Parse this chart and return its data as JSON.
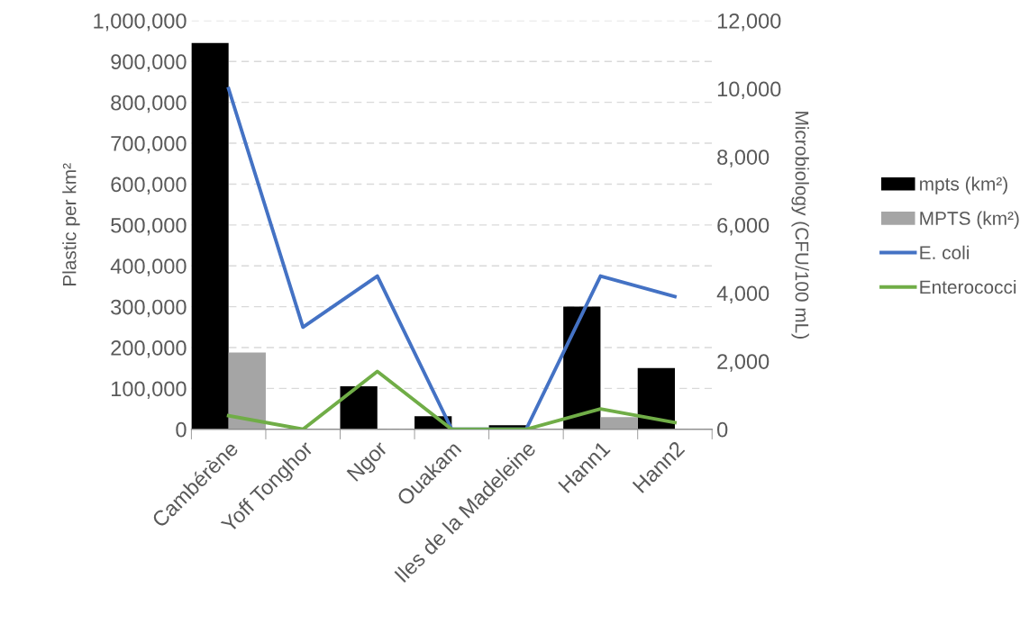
{
  "chart_data": {
    "type": "bar",
    "ylabel": "Plastic per km²",
    "y2label": "Microbiology (CFU/100 mL)",
    "categories": [
      "Cambérène",
      "Yoff Tonghor",
      "Ngor",
      "Ouakam",
      "Iles de la Madeleine",
      "Hann1",
      "Hann2"
    ],
    "series": [
      {
        "name": "mpts (km²)",
        "color": "#000000",
        "values": [
          945000,
          0,
          105000,
          32000,
          10000,
          300000,
          150000
        ]
      },
      {
        "name": "MPTS (km²)",
        "color": "#a5a5a5",
        "values": [
          188000,
          0,
          1000,
          1000,
          0,
          30000,
          0
        ]
      },
      {
        "name": "E. coli",
        "type": "line",
        "axis": "y2",
        "color": "#4472c4",
        "values": [
          10000,
          3000,
          4500,
          0,
          0,
          4500,
          3900
        ]
      },
      {
        "name": "Enterococci",
        "type": "line",
        "axis": "y2",
        "color": "#70ad47",
        "values": [
          400,
          0,
          1700,
          0,
          0,
          600,
          200
        ]
      }
    ],
    "ylim": [
      0,
      1000000
    ],
    "yticks": [
      {
        "value": 0,
        "label": "0"
      },
      {
        "value": 100000,
        "label": "100,000"
      },
      {
        "value": 200000,
        "label": "200,000"
      },
      {
        "value": 300000,
        "label": "300,000"
      },
      {
        "value": 400000,
        "label": "400,000"
      },
      {
        "value": 500000,
        "label": "500,000"
      },
      {
        "value": 600000,
        "label": "600,000"
      },
      {
        "value": 700000,
        "label": "700,000"
      },
      {
        "value": 800000,
        "label": "800,000"
      },
      {
        "value": 900000,
        "label": "900,000"
      },
      {
        "value": 1000000,
        "label": "1,000,000"
      }
    ],
    "y2lim": [
      0,
      12000
    ],
    "y2ticks": [
      {
        "value": 0,
        "label": "0"
      },
      {
        "value": 2000,
        "label": "2,000"
      },
      {
        "value": 4000,
        "label": "4,000"
      },
      {
        "value": 6000,
        "label": "6,000"
      },
      {
        "value": 8000,
        "label": "8,000"
      },
      {
        "value": 10000,
        "label": "10,000"
      },
      {
        "value": 12000,
        "label": "12,000"
      }
    ],
    "grid": "y",
    "legend": "right",
    "line_style": "solid",
    "marker": "none"
  }
}
